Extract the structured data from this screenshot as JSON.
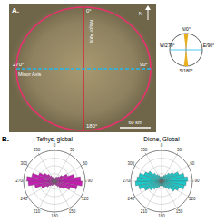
{
  "panel_a": {
    "label": "A.",
    "north": "N",
    "major_axis": "Major Axis",
    "minor_axis": "Minor Axis",
    "angles": [
      "0°",
      "90°",
      "180°",
      "270°"
    ],
    "scale_bar": "60 km"
  },
  "compass": {
    "labels": [
      "N/0°",
      "E/90°",
      "S/180°",
      "W/270°"
    ]
  },
  "panel_b_label": "B.",
  "chart_data": [
    {
      "type": "rose",
      "title": "Tethys, global",
      "bins": [
        0,
        10,
        20,
        30,
        40,
        50,
        60,
        70,
        80,
        90,
        100,
        110,
        120,
        130,
        140,
        150,
        160,
        170,
        180,
        190,
        200,
        210,
        220,
        230,
        240,
        250,
        260,
        270,
        280,
        290,
        300,
        310,
        320,
        330,
        340,
        350,
        360
      ],
      "values": [
        2,
        2,
        3,
        3,
        4,
        6,
        9,
        13,
        17,
        18,
        15,
        11,
        8,
        6,
        4,
        3,
        2,
        2,
        2,
        2,
        3,
        3,
        4,
        6,
        9,
        13,
        17,
        18,
        15,
        11,
        8,
        6,
        4,
        3,
        2,
        2
      ],
      "color": "#c21fb0",
      "ylim": [
        0,
        20
      ],
      "yticks": [
        5,
        10,
        15,
        20
      ],
      "xticks": [
        0,
        30,
        60,
        90,
        120,
        150,
        180,
        210,
        240,
        270,
        300,
        330
      ],
      "grid": true,
      "tick_labels": "x"
    },
    {
      "type": "rose",
      "title": "Dione, Global",
      "bins": [
        0,
        10,
        20,
        30,
        40,
        50,
        60,
        70,
        80,
        90,
        100,
        110,
        120,
        130,
        140,
        150,
        160,
        170,
        180,
        190,
        200,
        210,
        220,
        230,
        240,
        250,
        260,
        270,
        280,
        290,
        300,
        310,
        320,
        330,
        340,
        350,
        360
      ],
      "values": [
        3,
        3,
        4,
        5,
        7,
        9,
        12,
        15,
        17,
        16,
        15,
        12,
        10,
        7,
        5,
        4,
        3,
        3,
        3,
        3,
        4,
        5,
        7,
        9,
        12,
        15,
        17,
        16,
        15,
        12,
        10,
        7,
        5,
        4,
        3,
        3
      ],
      "color": "#1ec8c8",
      "ylim": [
        0,
        20
      ],
      "yticks": [
        5,
        10,
        15,
        20
      ],
      "xticks": [
        0,
        30,
        60,
        90,
        120,
        150,
        180,
        210,
        240,
        270,
        300,
        330
      ],
      "grid": true,
      "tick_labels": "x"
    }
  ]
}
